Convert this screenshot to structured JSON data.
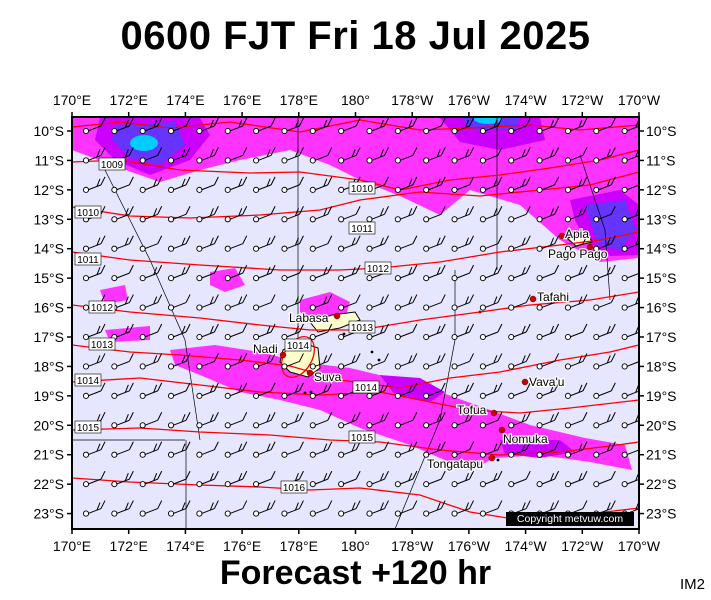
{
  "title": "0600 FJT Fri 18 Jul 2025",
  "subtitle": "Forecast +120 hr",
  "corner_code": "IM2",
  "copyright": "Copyright metvuw.com",
  "map": {
    "lon_range": [
      170,
      190
    ],
    "lat_range": [
      -23.5,
      -9.5
    ],
    "lon_labels": [
      "170°E",
      "172°E",
      "174°E",
      "176°E",
      "178°E",
      "180°",
      "178°W",
      "176°W",
      "174°W",
      "172°W",
      "170°W"
    ],
    "lat_labels": [
      "10°S",
      "11°S",
      "12°S",
      "13°S",
      "14°S",
      "15°S",
      "16°S",
      "17°S",
      "18°S",
      "19°S",
      "20°S",
      "21°S",
      "22°S",
      "23°S"
    ],
    "colors": {
      "background": "#e6e6ff",
      "isobar": "#ff0000",
      "rain_light": "#ff33ff",
      "rain_medium": "#cc00ff",
      "rain_heavy": "#6633ff",
      "rain_extreme": "#00ccff",
      "land": "#ffffcc",
      "city": "#cc0000"
    },
    "isobar_labels": [
      "1009",
      "1010",
      "1010",
      "1011",
      "1011",
      "1012",
      "1012",
      "1013",
      "1013",
      "1014",
      "1014",
      "1014",
      "1015",
      "1015",
      "1016"
    ],
    "places": [
      {
        "name": "Apia"
      },
      {
        "name": "Pago Pago"
      },
      {
        "name": "Tafahi"
      },
      {
        "name": "Labasa"
      },
      {
        "name": "Nadi"
      },
      {
        "name": "Suva"
      },
      {
        "name": "Vava'u"
      },
      {
        "name": "Tofua"
      },
      {
        "name": "Nomuka"
      },
      {
        "name": "Tongatapu"
      }
    ]
  }
}
